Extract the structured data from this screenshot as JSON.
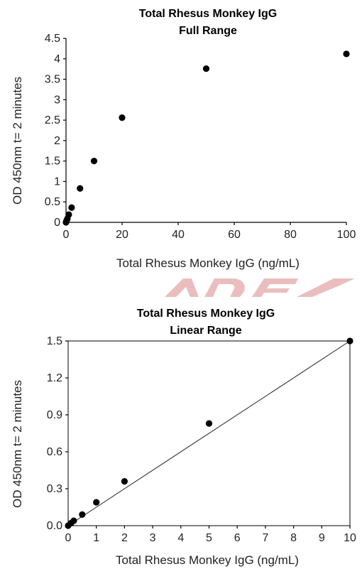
{
  "chart_data": [
    {
      "type": "scatter",
      "title": "Total Rhesus Monkey IgG",
      "subtitle": "Full Range",
      "xlabel": "Total Rhesus Monkey IgG (ng/mL)",
      "ylabel": "OD 450nm t= 2 minutes",
      "xlim": [
        0,
        100
      ],
      "ylim": [
        0,
        4.5
      ],
      "xticks": [
        0,
        20,
        40,
        60,
        80,
        100
      ],
      "yticks": [
        "0",
        "0.5",
        "1",
        "1.5",
        "2",
        "2.5",
        "3",
        "3.5",
        "4",
        "4.5"
      ],
      "frame": "left-bottom",
      "grid": false,
      "x": [
        0,
        0.1,
        0.2,
        0.5,
        1,
        2,
        5,
        10,
        20,
        50,
        100
      ],
      "y": [
        0.0,
        0.02,
        0.04,
        0.09,
        0.19,
        0.36,
        0.83,
        1.5,
        2.56,
        3.76,
        4.12
      ]
    },
    {
      "type": "scatter",
      "title": "Total Rhesus Monkey IgG",
      "subtitle": "Linear Range",
      "xlabel": "Total Rhesus Monkey IgG (ng/mL)",
      "ylabel": "OD 450nm t= 2 minutes",
      "xlim": [
        0,
        10
      ],
      "ylim": [
        0,
        1.5
      ],
      "xticks": [
        0,
        1,
        2,
        3,
        4,
        5,
        6,
        7,
        8,
        9,
        10
      ],
      "yticks": [
        "0.0",
        "0.3",
        "0.6",
        "0.9",
        "1.2",
        "1.5"
      ],
      "frame": "box",
      "grid": false,
      "trendline": {
        "x": [
          0,
          10
        ],
        "y": [
          0,
          1.5
        ]
      },
      "x": [
        0,
        0.1,
        0.2,
        0.5,
        1,
        2,
        5,
        10
      ],
      "y": [
        0.0,
        0.02,
        0.04,
        0.09,
        0.19,
        0.36,
        0.83,
        1.5
      ]
    }
  ]
}
